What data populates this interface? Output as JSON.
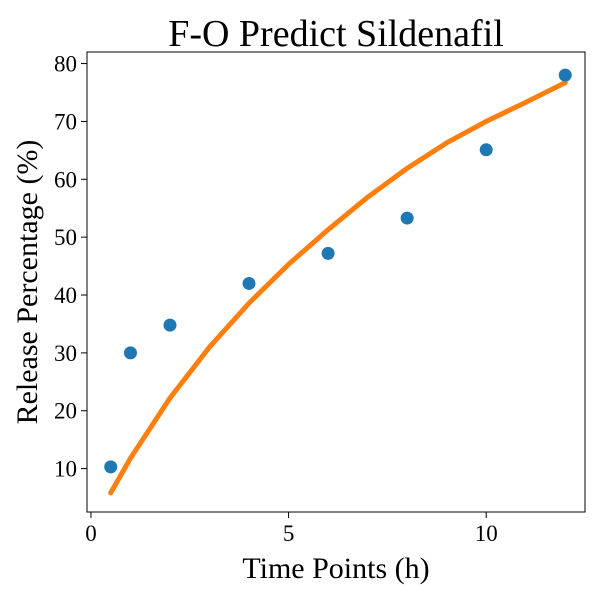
{
  "chart_data": {
    "type": "scatter",
    "title": "F-O Predict Sildenafil",
    "xlabel": "Time Points (h)",
    "ylabel": "Release Percentage (%)",
    "xlim": [
      -0.1,
      12.5
    ],
    "ylim": [
      2.5,
      82
    ],
    "xticks": [
      0,
      5,
      10
    ],
    "yticks": [
      10,
      20,
      30,
      40,
      50,
      60,
      70,
      80
    ],
    "grid": false,
    "legend": "none",
    "series": [
      {
        "kind": "scatter",
        "color": "#1f77b4",
        "x": [
          0.5,
          1,
          2,
          4,
          6,
          8,
          10,
          12
        ],
        "y": [
          10.3,
          30.0,
          34.8,
          42.0,
          47.2,
          53.3,
          65.1,
          78.0
        ]
      },
      {
        "kind": "line",
        "color": "#ff7f0e",
        "x": [
          0.5,
          1,
          2,
          3,
          4,
          5,
          6,
          7,
          8,
          9,
          10,
          11,
          12
        ],
        "y": [
          5.8,
          11.8,
          22.2,
          31.0,
          38.6,
          45.3,
          51.3,
          56.9,
          61.9,
          66.3,
          70.0,
          73.3,
          76.7
        ]
      }
    ]
  }
}
